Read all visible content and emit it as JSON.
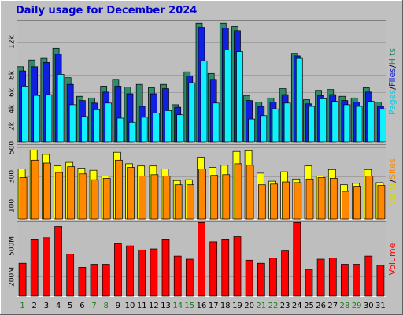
{
  "colors": {
    "background": "#c0c0c0",
    "panel": "#bebebe",
    "grid": "#a0a0a0",
    "bar_border": "#000000",
    "hits": "#2e8b6b",
    "files": "#1020e0",
    "pages": "#10f0ff",
    "visits": "#ffff00",
    "sites": "#ff8800",
    "volume": "#ff0000",
    "title": "#0000cc",
    "weekend_day": "#1a7a1a",
    "weekday": "#000000"
  },
  "chart_data": {
    "type": "bar",
    "title": "Daily usage for December 2024",
    "x": {
      "categories": [
        "1",
        "2",
        "3",
        "4",
        "5",
        "6",
        "7",
        "8",
        "9",
        "10",
        "11",
        "12",
        "13",
        "14",
        "15",
        "16",
        "17",
        "18",
        "19",
        "20",
        "21",
        "22",
        "23",
        "24",
        "25",
        "26",
        "27",
        "28",
        "29",
        "30",
        "31"
      ],
      "weekend": [
        true,
        false,
        false,
        false,
        false,
        false,
        true,
        true,
        false,
        false,
        false,
        false,
        false,
        true,
        true,
        false,
        false,
        false,
        false,
        false,
        true,
        true,
        false,
        false,
        false,
        false,
        false,
        true,
        true,
        false,
        false
      ]
    },
    "panels": [
      {
        "id": "hits-files-pages",
        "ylabel_parts": [
          {
            "text": "Pages",
            "color": "#10c8e0"
          },
          {
            "text": "/",
            "color": "#000000"
          },
          {
            "text": "Files",
            "color": "#1020e0"
          },
          {
            "text": "/",
            "color": "#000000"
          },
          {
            "text": "Hits",
            "color": "#2e8b6b"
          }
        ],
        "ylim": [
          0,
          14500
        ],
        "yticks": [
          2000,
          4000,
          6000,
          8000,
          12000
        ],
        "ytick_labels": [
          "2k",
          "4k",
          "6k",
          "8k",
          "12k"
        ],
        "series": [
          {
            "name": "Hits",
            "color_key": "hits",
            "values": [
              9000,
              9800,
              10000,
              11200,
              7700,
              5500,
              5300,
              6700,
              7500,
              6600,
              6900,
              6500,
              6900,
              4500,
              8400,
              14200,
              8200,
              14200,
              13800,
              5600,
              4800,
              5300,
              6400,
              10600,
              5100,
              6200,
              6300,
              5500,
              5300,
              6500,
              4800
            ]
          },
          {
            "name": "Files",
            "color_key": "files",
            "values": [
              8500,
              9000,
              9500,
              10500,
              6900,
              5000,
              4700,
              6000,
              6700,
              5800,
              4300,
              5800,
              6400,
              4200,
              7900,
              13700,
              7500,
              13600,
              13300,
              5000,
              4300,
              4800,
              5700,
              10300,
              4600,
              5600,
              5700,
              5000,
              4800,
              6000,
              4300
            ]
          },
          {
            "name": "Pages",
            "color_key": "pages",
            "values": [
              6700,
              5600,
              5700,
              8100,
              4500,
              3100,
              3900,
              4700,
              2900,
              2400,
              3000,
              3500,
              3800,
              3300,
              7100,
              9700,
              4700,
              11000,
              10800,
              2800,
              3200,
              4000,
              4700,
              10000,
              4300,
              5200,
              4900,
              4500,
              4300,
              4900,
              4000
            ]
          }
        ]
      },
      {
        "id": "visits-sites",
        "ylabel_parts": [
          {
            "text": "Visits",
            "color": "#d8d800"
          },
          {
            "text": "/",
            "color": "#000000"
          },
          {
            "text": "Sites",
            "color": "#ff8800"
          }
        ],
        "ylim": [
          0,
          520
        ],
        "yticks": [
          100,
          300,
          500
        ],
        "ytick_labels": [
          "100",
          "300",
          "500"
        ],
        "series": [
          {
            "name": "Visits",
            "color_key": "visits",
            "values": [
              350,
              480,
              450,
              370,
              395,
              355,
              340,
              300,
              465,
              385,
              370,
              370,
              350,
              270,
              275,
              430,
              360,
              375,
              470,
              475,
              320,
              265,
              330,
              280,
              370,
              300,
              345,
              240,
              250,
              345,
              255
            ]
          },
          {
            "name": "Sites",
            "color_key": "sites",
            "values": [
              290,
              410,
              390,
              325,
              365,
              315,
              275,
              285,
              410,
              360,
              300,
              310,
              300,
              240,
              240,
              350,
              305,
              310,
              385,
              375,
              240,
              245,
              260,
              255,
              280,
              290,
              285,
              195,
              230,
              300,
              235
            ]
          }
        ]
      },
      {
        "id": "volume",
        "ylabel_parts": [
          {
            "text": "Volume",
            "color": "#ff0000"
          }
        ],
        "ylim": [
          0,
          740
        ],
        "yticks": [
          200,
          500
        ],
        "ytick_labels": [
          "200M",
          "500M"
        ],
        "series": [
          {
            "name": "Volume",
            "color_key": "volume",
            "values": [
              330,
              560,
              580,
              690,
              420,
              290,
              320,
              320,
              520,
              500,
              460,
              470,
              560,
              400,
              370,
              730,
              540,
              560,
              590,
              360,
              330,
              380,
              450,
              730,
              270,
              370,
              380,
              320,
              320,
              400,
              310
            ]
          }
        ]
      }
    ]
  }
}
